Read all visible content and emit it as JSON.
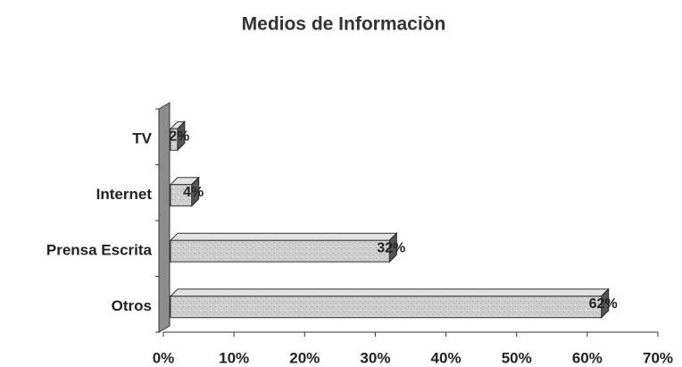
{
  "chart_data": {
    "type": "bar",
    "orientation": "horizontal",
    "title": "Medios de Informaciòn",
    "categories": [
      "TV",
      "Internet",
      "Prensa Escrita",
      "Otros"
    ],
    "values": [
      2,
      4,
      32,
      62
    ],
    "value_labels": [
      "2%",
      "4%",
      "32%",
      "62%"
    ],
    "color": "#c8c8c8",
    "xlim": [
      0,
      70
    ],
    "xticks": [
      {
        "value": 0,
        "label": "0%"
      },
      {
        "value": 10,
        "label": "10%"
      },
      {
        "value": 20,
        "label": "20%"
      },
      {
        "value": 30,
        "label": "30%"
      },
      {
        "value": 40,
        "label": "40%"
      },
      {
        "value": 50,
        "label": "50%"
      },
      {
        "value": 60,
        "label": "60%"
      },
      {
        "value": 70,
        "label": "70%"
      }
    ],
    "grid": false
  }
}
